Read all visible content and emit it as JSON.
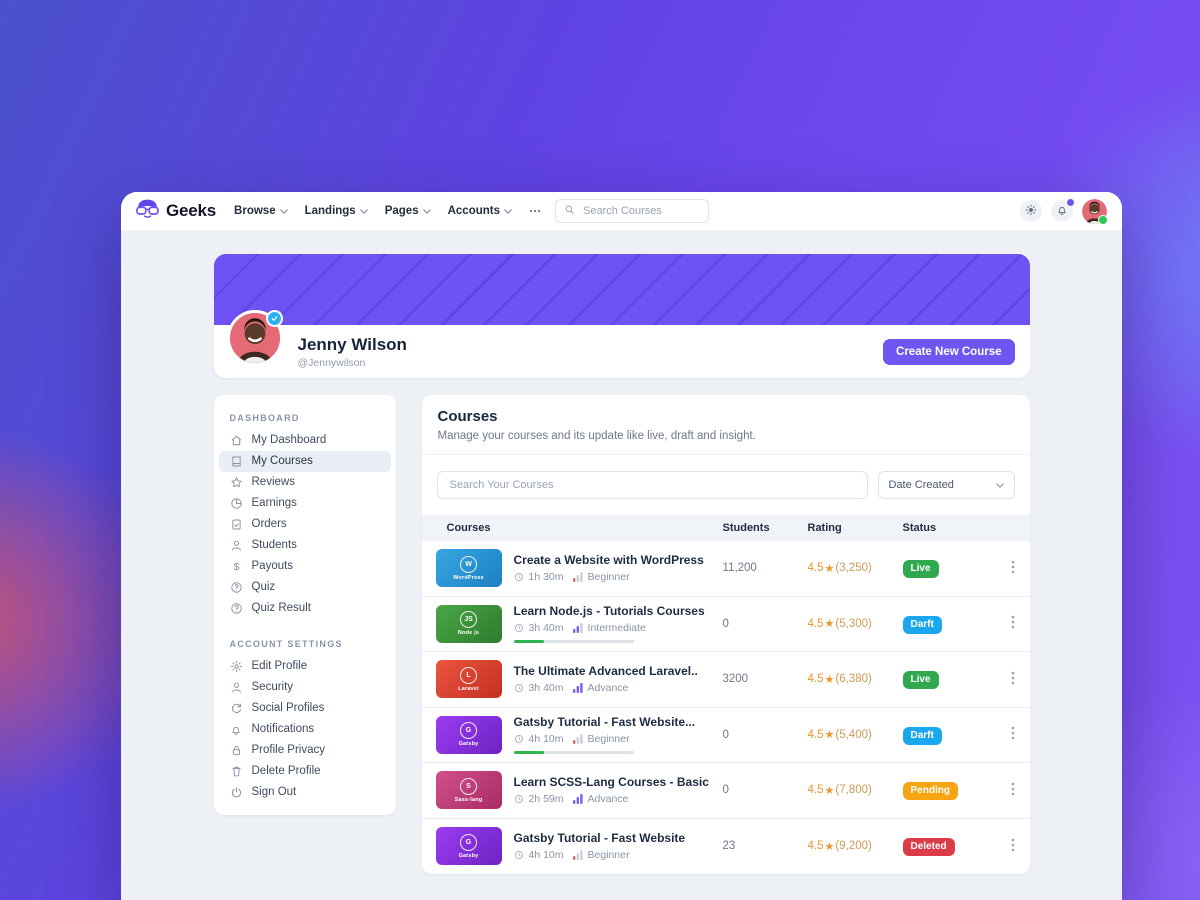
{
  "navbar": {
    "brand": "Geeks",
    "items": [
      {
        "label": "Browse"
      },
      {
        "label": "Landings"
      },
      {
        "label": "Pages"
      },
      {
        "label": "Accounts"
      }
    ],
    "more_icon": "ellipsis-icon",
    "search_placeholder": "Search Courses",
    "theme_icon": "sun-icon",
    "notifications_icon": "bell-icon",
    "notification_dot_color": "#6e52f2",
    "online_dot_color": "#2dc653"
  },
  "profile": {
    "name": "Jenny Wilson",
    "handle": "@Jennywilson",
    "create_button": "Create New Course",
    "verified_icon": "verified-badge-icon",
    "banner_color": "#6e52f3",
    "button_color": "#7056f0"
  },
  "sidebar": {
    "sections": [
      {
        "title": "Dashboard",
        "items": [
          {
            "icon": "home-icon",
            "label": "My Dashboard",
            "active": false
          },
          {
            "icon": "book-icon",
            "label": "My Courses",
            "active": true
          },
          {
            "icon": "star-icon",
            "label": "Reviews",
            "active": false
          },
          {
            "icon": "pie-icon",
            "label": "Earnings",
            "active": false
          },
          {
            "icon": "clipboard-icon",
            "label": "Orders",
            "active": false
          },
          {
            "icon": "person-icon",
            "label": "Students",
            "active": false
          },
          {
            "icon": "dollar-icon",
            "label": "Payouts",
            "active": false
          },
          {
            "icon": "help-icon",
            "label": "Quiz",
            "active": false
          },
          {
            "icon": "help-icon",
            "label": "Quiz Result",
            "active": false
          }
        ]
      },
      {
        "title": "Account Settings",
        "items": [
          {
            "icon": "gear-icon",
            "label": "Edit Profile",
            "active": false
          },
          {
            "icon": "person-icon",
            "label": "Security",
            "active": false
          },
          {
            "icon": "refresh-icon",
            "label": "Social Profiles",
            "active": false
          },
          {
            "icon": "bell-icon",
            "label": "Notifications",
            "active": false
          },
          {
            "icon": "lock-icon",
            "label": "Profile Privacy",
            "active": false
          },
          {
            "icon": "trash-icon",
            "label": "Delete Profile",
            "active": false
          },
          {
            "icon": "power-icon",
            "label": "Sign Out",
            "active": false
          }
        ]
      }
    ]
  },
  "courses_panel": {
    "title": "Courses",
    "subtitle": "Manage your courses and its update like live, draft and insight.",
    "search_placeholder": "Search Your Courses",
    "sort_selected": "Date Created",
    "table": {
      "headers": [
        "Courses",
        "Students",
        "Rating",
        "Status"
      ],
      "rating_color": "#e8962e",
      "rating_count_color": "#cf9a55",
      "progress_color": "#2eb34d",
      "meta_icons": {
        "duration": "clock-icon",
        "level": "signal-bars-icon"
      },
      "row_menu_icon": "kebab-icon",
      "rows": [
        {
          "thumb": {
            "name": "WordPress",
            "glyph": "W",
            "color_from": "#36a6e2",
            "color_to": "#1d80c3"
          },
          "title": "Create a Website with WordPress",
          "duration": "1h 30m",
          "level": "Beginner",
          "level_bars": 1,
          "level_color": "#e0685f",
          "students": "11,200",
          "rating": "4.5",
          "rating_count": "(3,250)",
          "status": "Live",
          "status_color": "#2fa84f",
          "progress_pct": null
        },
        {
          "thumb": {
            "name": "Node js",
            "glyph": "JS",
            "color_from": "#4aa647",
            "color_to": "#2e7c2d"
          },
          "title": "Learn Node.js - Tutorials Courses",
          "duration": "3h 40m",
          "level": "Intermediate",
          "level_bars": 2,
          "level_color": "#7b5cf0",
          "students": "0",
          "rating": "4.5",
          "rating_count": "(5,300)",
          "status": "Darft",
          "status_color": "#1aa7ee",
          "progress_pct": 25
        },
        {
          "thumb": {
            "name": "Laravel",
            "glyph": "L",
            "color_from": "#ea5440",
            "color_to": "#c52f20"
          },
          "title": "The Ultimate Advanced Laravel..",
          "duration": "3h 40m",
          "level": "Advance",
          "level_bars": 3,
          "level_color": "#7b5cf0",
          "students": "3200",
          "rating": "4.5",
          "rating_count": "(6,380)",
          "status": "Live",
          "status_color": "#2fa84f",
          "progress_pct": null
        },
        {
          "thumb": {
            "name": "Gatsby",
            "glyph": "G",
            "color_from": "#9b3df0",
            "color_to": "#6d23c4"
          },
          "title": "Gatsby Tutorial - Fast Website...",
          "duration": "4h 10m",
          "level": "Beginner",
          "level_bars": 1,
          "level_color": "#e0685f",
          "students": "0",
          "rating": "4.5",
          "rating_count": "(5,400)",
          "status": "Darft",
          "status_color": "#1aa7ee",
          "progress_pct": 25
        },
        {
          "thumb": {
            "name": "Sass-lang",
            "glyph": "S",
            "color_from": "#d14f8b",
            "color_to": "#a82c64"
          },
          "title": "Learn SCSS-Lang Courses - Basic",
          "duration": "2h 59m",
          "level": "Advance",
          "level_bars": 3,
          "level_color": "#7b5cf0",
          "students": "0",
          "rating": "4.5",
          "rating_count": "(7,800)",
          "status": "Pending",
          "status_color": "#f6a411",
          "progress_pct": null
        },
        {
          "thumb": {
            "name": "Gatsby",
            "glyph": "G",
            "color_from": "#9b3df0",
            "color_to": "#6d23c4"
          },
          "title": "Gatsby Tutorial - Fast Website",
          "duration": "4h 10m",
          "level": "Beginner",
          "level_bars": 1,
          "level_color": "#e0685f",
          "students": "23",
          "rating": "4.5",
          "rating_count": "(9,200)",
          "status": "Deleted",
          "status_color": "#dc3c47",
          "progress_pct": null
        }
      ]
    }
  }
}
